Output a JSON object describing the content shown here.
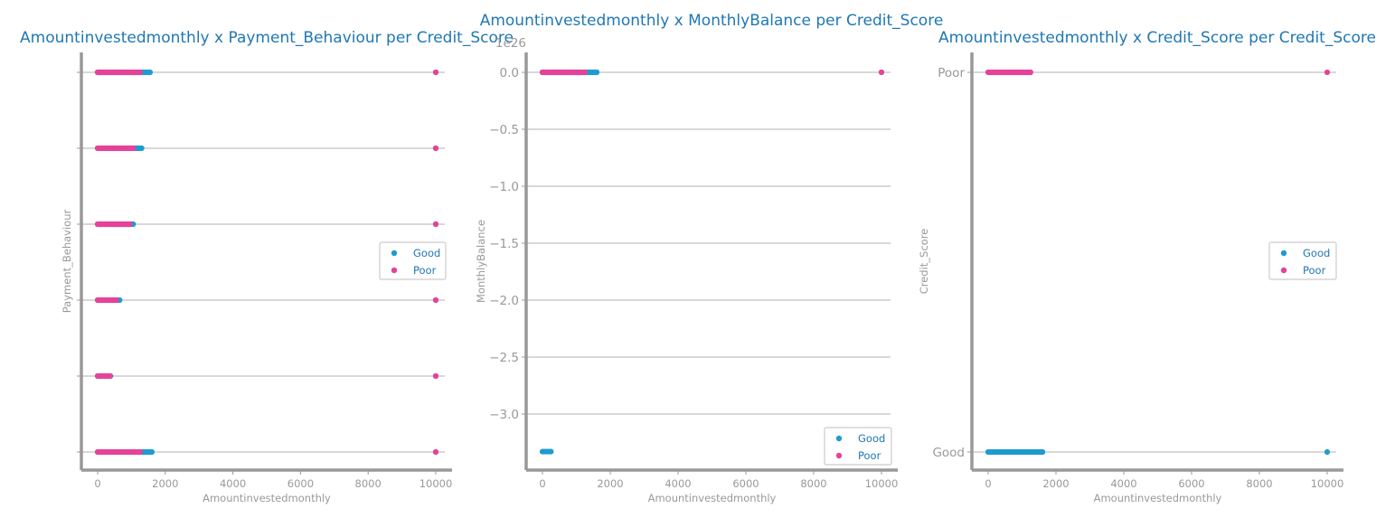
{
  "figure": {
    "colors": {
      "Good": "#1f9bcf",
      "Poor": "#e6429a",
      "title": "#1f77b4",
      "axis": "#999999",
      "grid": "#cccccc"
    }
  },
  "chart_data": [
    {
      "type": "scatter",
      "title": "Amountinvestedmonthly x Payment_Behaviour per Credit_Score",
      "xlabel": "Amountinvestedmonthly",
      "ylabel": "Payment_Behaviour",
      "xlim": [
        -500,
        10500
      ],
      "xticks": [
        "0",
        "2000",
        "4000",
        "6000",
        "8000",
        "10000"
      ],
      "xtick_values": [
        0,
        2000,
        4000,
        6000,
        8000,
        10000
      ],
      "y_categories": [
        "",
        "",
        "",
        "",
        "",
        ""
      ],
      "y_offset_label": "",
      "grid": "horizontal",
      "legend": {
        "placement": "center-right",
        "entries": [
          "Good",
          "Poor"
        ]
      },
      "series": [
        {
          "name": "Good",
          "ranges": [
            {
              "y": 0,
              "x": [
                0,
                1600
              ],
              "outlier": 10000
            },
            {
              "y": 1,
              "x": [
                0,
                380
              ],
              "outlier": 10000
            },
            {
              "y": 2,
              "x": [
                0,
                650
              ],
              "outlier": 10000
            },
            {
              "y": 3,
              "x": [
                0,
                1050
              ],
              "outlier": 10000
            },
            {
              "y": 4,
              "x": [
                0,
                1300
              ],
              "outlier": 10000
            },
            {
              "y": 5,
              "x": [
                0,
                1550
              ],
              "outlier": 10000
            }
          ]
        },
        {
          "name": "Poor",
          "ranges": [
            {
              "y": 0,
              "x": [
                0,
                1250
              ],
              "outlier": 10000
            },
            {
              "y": 1,
              "x": [
                0,
                360
              ],
              "outlier": 10000
            },
            {
              "y": 2,
              "x": [
                0,
                550
              ],
              "outlier": 10000
            },
            {
              "y": 3,
              "x": [
                0,
                950
              ],
              "outlier": 10000
            },
            {
              "y": 4,
              "x": [
                0,
                1050
              ],
              "outlier": 10000
            },
            {
              "y": 5,
              "x": [
                0,
                1250
              ],
              "outlier": 10000
            }
          ]
        }
      ]
    },
    {
      "type": "scatter",
      "title": "Amountinvestedmonthly x MonthlyBalance per Credit_Score",
      "xlabel": "Amountinvestedmonthly",
      "ylabel": "MonthlyBalance",
      "xlim": [
        -500,
        10500
      ],
      "xticks": [
        "0",
        "2000",
        "4000",
        "6000",
        "8000",
        "10000"
      ],
      "xtick_values": [
        0,
        2000,
        4000,
        6000,
        8000,
        10000
      ],
      "ylim": [
        -3.5,
        0.1
      ],
      "yticks": [
        "0.0",
        "−0.5",
        "−1.0",
        "−1.5",
        "−2.0",
        "−2.5",
        "−3.0"
      ],
      "ytick_values": [
        0.0,
        -0.5,
        -1.0,
        -1.5,
        -2.0,
        -2.5,
        -3.0
      ],
      "y_offset_label": "1e26",
      "grid": "horizontal",
      "legend": {
        "placement": "lower-right",
        "entries": [
          "Good",
          "Poor"
        ]
      },
      "series": [
        {
          "name": "Good",
          "ranges": [
            {
              "y": 0.0,
              "x": [
                0,
                1600
              ],
              "outlier": 10000
            },
            {
              "y": -3.33,
              "x": [
                0,
                250
              ]
            }
          ]
        },
        {
          "name": "Poor",
          "ranges": [
            {
              "y": 0.0,
              "x": [
                0,
                1250
              ],
              "outlier": 10000
            }
          ]
        }
      ]
    },
    {
      "type": "scatter",
      "title": "Amountinvestedmonthly x Credit_Score per Credit_Score",
      "xlabel": "Amountinvestedmonthly",
      "ylabel": "Credit_Score",
      "xlim": [
        -500,
        10500
      ],
      "xticks": [
        "0",
        "2000",
        "4000",
        "6000",
        "8000",
        "10000"
      ],
      "xtick_values": [
        0,
        2000,
        4000,
        6000,
        8000,
        10000
      ],
      "y_categories": [
        "Good",
        "Poor"
      ],
      "y_offset_label": "",
      "grid": "horizontal",
      "legend": {
        "placement": "center-right",
        "entries": [
          "Good",
          "Poor"
        ]
      },
      "series": [
        {
          "name": "Good",
          "ranges": [
            {
              "y": 0,
              "x": [
                0,
                1600
              ],
              "outlier": 10000
            }
          ]
        },
        {
          "name": "Poor",
          "ranges": [
            {
              "y": 1,
              "x": [
                0,
                1250
              ],
              "outlier": 10000
            }
          ]
        }
      ]
    }
  ]
}
